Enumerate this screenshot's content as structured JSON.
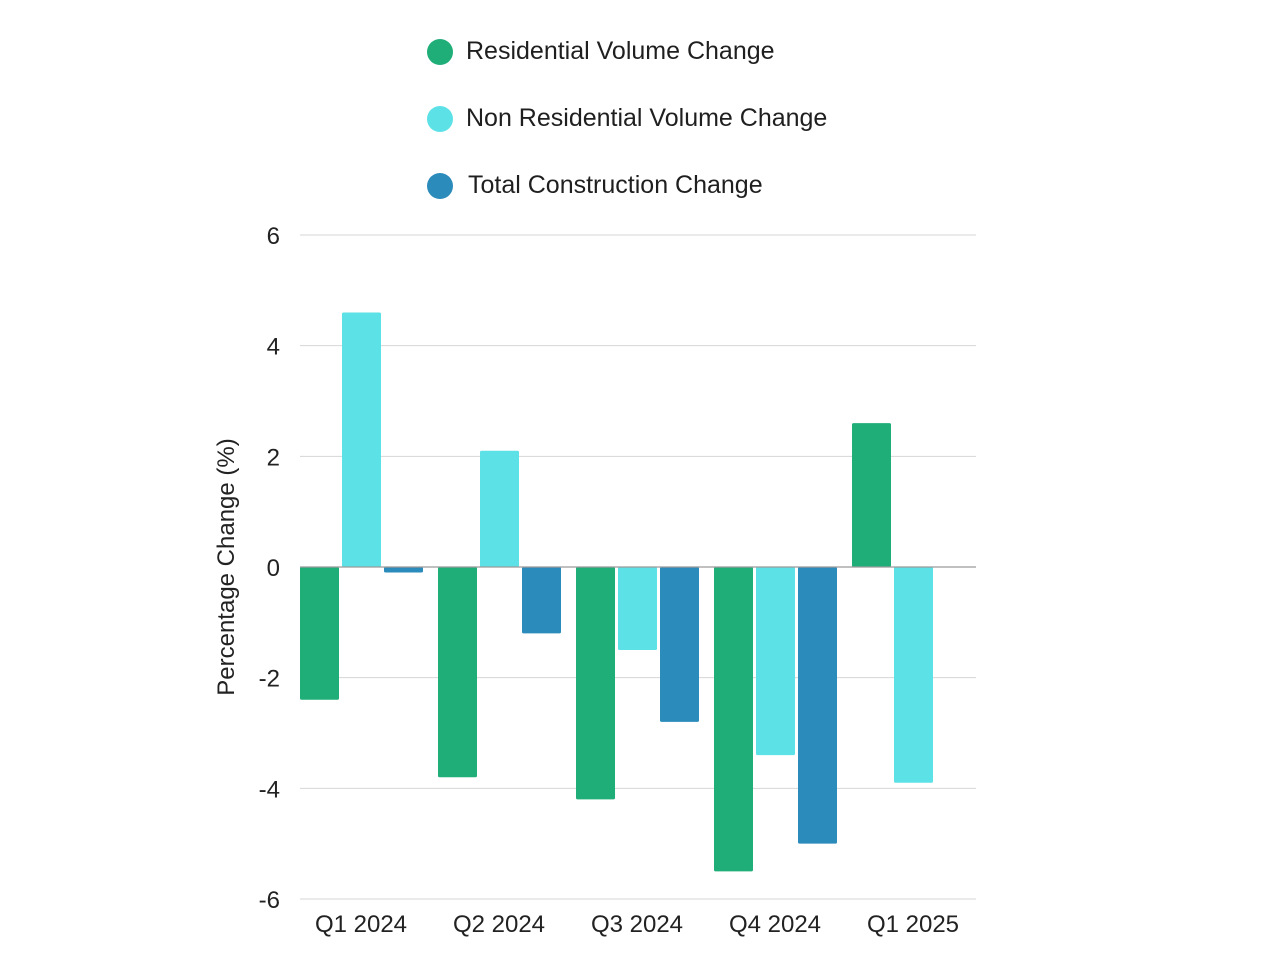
{
  "chart_data": {
    "type": "bar",
    "title": "",
    "xlabel": "",
    "ylabel": "Percentage Change (%)",
    "ylim": [
      -6,
      6
    ],
    "yticks": [
      6,
      4,
      2,
      0,
      -2,
      -4,
      -6
    ],
    "grid": true,
    "legend_position": "top",
    "categories": [
      "Q1 2024",
      "Q2 2024",
      "Q3 2024",
      "Q4 2024",
      "Q1 2025"
    ],
    "series": [
      {
        "name": "Residential Volume Change",
        "color": "#1fad78",
        "values": [
          -2.4,
          -3.8,
          -4.2,
          -5.5,
          2.6
        ]
      },
      {
        "name": "Non Residential Volume Change",
        "color": "#5ce1e6",
        "values": [
          4.6,
          2.1,
          -1.5,
          -3.4,
          -3.9
        ]
      },
      {
        "name": "Total Construction Change",
        "color": "#2b8bba",
        "values": [
          -0.1,
          -1.2,
          -2.8,
          -5.0,
          null
        ]
      }
    ]
  }
}
